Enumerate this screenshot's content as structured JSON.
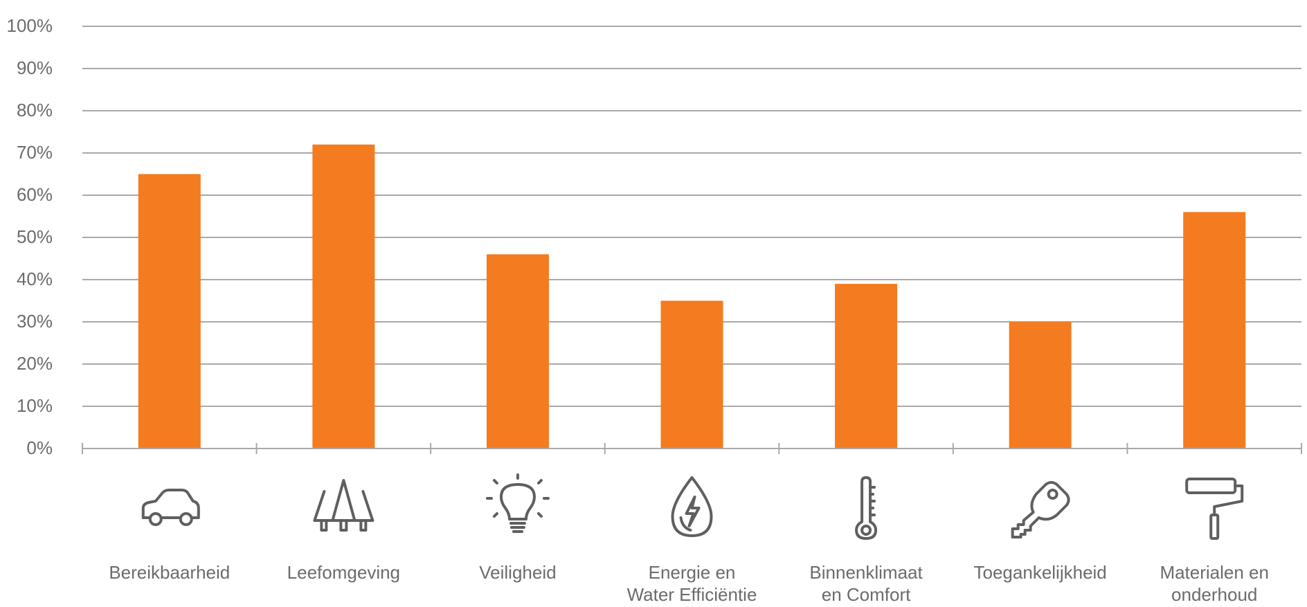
{
  "chart_data": {
    "type": "bar",
    "categories": [
      [
        "Bereikbaarheid"
      ],
      [
        "Leefomgeving"
      ],
      [
        "Veiligheid"
      ],
      [
        "Energie en",
        "Water Efficiëntie"
      ],
      [
        "Binnenklimaat",
        "en Comfort"
      ],
      [
        "Toegankelijkheid"
      ],
      [
        "Materialen en",
        "onderhoud"
      ]
    ],
    "icons": [
      "car-icon",
      "trees-icon",
      "lightbulb-icon",
      "water-energy-drop-icon",
      "thermometer-icon",
      "key-icon",
      "paint-roller-icon"
    ],
    "values": [
      65,
      72,
      46,
      35,
      39,
      30,
      56
    ],
    "ylim": [
      0,
      100
    ],
    "yticks": [
      0,
      10,
      20,
      30,
      40,
      50,
      60,
      70,
      80,
      90,
      100
    ],
    "tick_suffix": "%",
    "grid": true,
    "legend": "none",
    "bar_color": "#f47b20",
    "grid_color": "#a9a9a9",
    "text_color": "#6b6b6b",
    "icon_color": "#5f5f5f"
  }
}
